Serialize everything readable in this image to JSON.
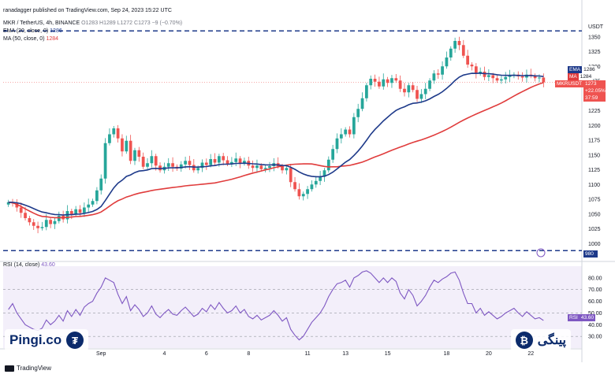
{
  "header": {
    "author_line": "ranadagger published on TradingView.com, Sep 24, 2023 15:22 UTC",
    "symbol_line": "MKR / TetherUS, 4h, BINANCE",
    "ohlc": "O1283 H1289 L1272 C1273 −9 (−0.70%)"
  },
  "indicators": {
    "ema_label": "EMA (20, close, 0)",
    "ema_value": "1286",
    "ma_label": "MA (50, close, 0)",
    "ma_value": "1284",
    "rsi_label": "RSI (14, close)",
    "rsi_value": "43.60"
  },
  "right_tags": {
    "ema_key": "EMA",
    "ema_val": "1286",
    "ma_key": "MA",
    "ma_val": "1284",
    "symbol": "MKRUSDT",
    "price": "1273",
    "change": "+22.05%",
    "timer": "37:59",
    "rsi_key": "RSI",
    "rsi_val": "43.60",
    "level_980": "980"
  },
  "axis": {
    "currency": "USDT"
  },
  "branding": {
    "left_text": "Pingi.co",
    "right_text": "پینگی",
    "footer": "TradingView"
  },
  "colors": {
    "up": "#26a69a",
    "down": "#ef5350",
    "ema": "#1e3a8a",
    "ma": "#e03c3c",
    "rsi": "#7e57c2",
    "resistance": "#1e3a8a"
  },
  "chart_data": [
    {
      "type": "candlestick",
      "title": "MKR / TetherUS, 4h, BINANCE",
      "ylabel": "USDT",
      "ylim": [
        975,
        1375
      ],
      "yticks": [
        1000,
        1025,
        1050,
        1075,
        1100,
        1125,
        1150,
        1175,
        1200,
        1225,
        1250,
        1275,
        1300,
        1325,
        1350
      ],
      "xtick_labels": [
        "Sep",
        "4",
        "6",
        "8",
        "11",
        "13",
        "15",
        "18",
        "20",
        "22"
      ],
      "xtick_index": [
        22,
        37,
        47,
        57,
        71,
        80,
        90,
        104,
        114,
        124
      ],
      "horizontal_levels": [
        {
          "value": 1360,
          "style": "dashed"
        },
        {
          "value": 988,
          "style": "dashed"
        }
      ],
      "last_price": 1273,
      "closes": [
        1070,
        1068,
        1061,
        1052,
        1043,
        1036,
        1030,
        1026,
        1028,
        1040,
        1033,
        1038,
        1047,
        1041,
        1055,
        1050,
        1058,
        1052,
        1061,
        1066,
        1072,
        1090,
        1110,
        1170,
        1185,
        1195,
        1178,
        1156,
        1174,
        1140,
        1158,
        1147,
        1130,
        1136,
        1148,
        1132,
        1124,
        1130,
        1136,
        1130,
        1127,
        1134,
        1140,
        1133,
        1124,
        1128,
        1137,
        1133,
        1143,
        1137,
        1148,
        1141,
        1135,
        1138,
        1144,
        1136,
        1140,
        1132,
        1128,
        1132,
        1126,
        1128,
        1131,
        1136,
        1131,
        1124,
        1128,
        1104,
        1092,
        1080,
        1084,
        1092,
        1100,
        1106,
        1113,
        1124,
        1142,
        1160,
        1178,
        1185,
        1193,
        1185,
        1214,
        1228,
        1246,
        1268,
        1279,
        1274,
        1266,
        1278,
        1272,
        1280,
        1276,
        1262,
        1256,
        1268,
        1260,
        1245,
        1253,
        1262,
        1276,
        1288,
        1286,
        1300,
        1315,
        1330,
        1343,
        1336,
        1318,
        1303,
        1300,
        1288,
        1291,
        1282,
        1285,
        1280,
        1276,
        1278,
        1282,
        1284,
        1286,
        1283,
        1281,
        1286,
        1284,
        1280,
        1281,
        1273
      ]
    },
    {
      "type": "line",
      "title": "RSI (14, close)",
      "ylim": [
        20,
        90
      ],
      "yticks": [
        30,
        40,
        50,
        60,
        70,
        80
      ],
      "bands": [
        30,
        50,
        70
      ],
      "values": [
        53,
        58,
        50,
        45,
        40,
        38,
        36,
        35,
        37,
        44,
        40,
        43,
        48,
        43,
        52,
        47,
        53,
        48,
        55,
        58,
        60,
        67,
        72,
        80,
        78,
        76,
        66,
        58,
        64,
        52,
        57,
        53,
        47,
        50,
        56,
        49,
        46,
        50,
        53,
        49,
        48,
        52,
        55,
        51,
        47,
        49,
        54,
        51,
        57,
        53,
        59,
        54,
        50,
        52,
        56,
        50,
        53,
        47,
        45,
        48,
        44,
        46,
        48,
        52,
        48,
        43,
        46,
        36,
        31,
        27,
        30,
        36,
        42,
        46,
        50,
        56,
        64,
        70,
        75,
        76,
        78,
        72,
        80,
        82,
        85,
        86,
        84,
        80,
        76,
        80,
        76,
        80,
        77,
        67,
        62,
        70,
        65,
        56,
        60,
        65,
        72,
        78,
        76,
        79,
        81,
        84,
        85,
        78,
        67,
        58,
        58,
        50,
        54,
        48,
        51,
        48,
        45,
        47,
        50,
        52,
        54,
        50,
        47,
        51,
        48,
        45,
        46,
        43.6
      ]
    }
  ]
}
